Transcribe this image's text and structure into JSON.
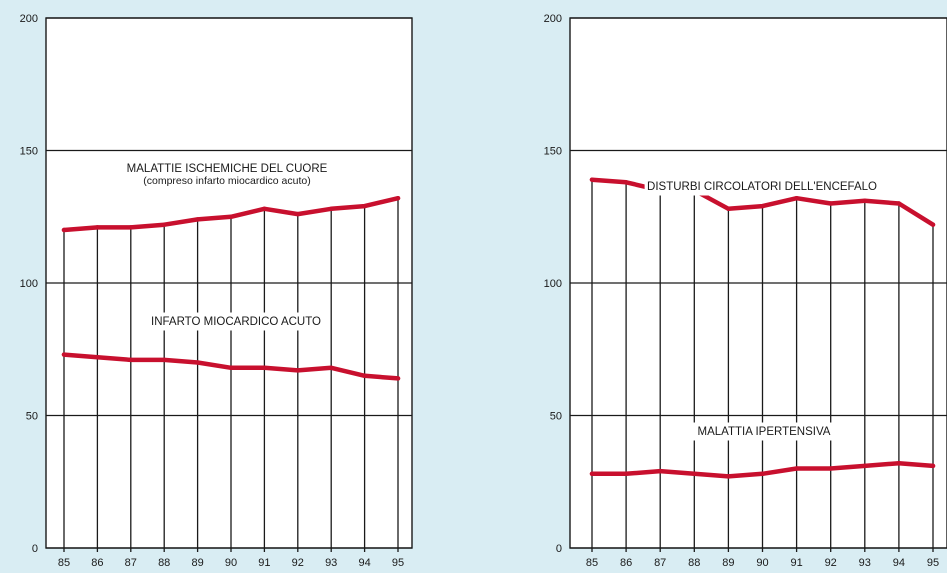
{
  "chart_data": [
    {
      "type": "line",
      "x": [
        85,
        86,
        87,
        88,
        89,
        90,
        91,
        92,
        93,
        94,
        95
      ],
      "ylim": [
        0,
        200
      ],
      "yticks": [
        0,
        50,
        100,
        150,
        200
      ],
      "series": [
        {
          "values": [
            120,
            121,
            121,
            122,
            124,
            125,
            128,
            126,
            128,
            129,
            132
          ]
        },
        {
          "values": [
            73,
            72,
            71,
            71,
            70,
            68,
            68,
            67,
            68,
            65,
            64
          ]
        }
      ],
      "annotations": [
        {
          "lines": [
            "MALATTIE ISCHEMICHE DEL CUORE",
            "(compreso infarto miocardico acuto)"
          ]
        },
        {
          "lines": [
            "INFARTO MIOCARDICO ACUTO"
          ]
        }
      ],
      "grid": true,
      "line_color": "#c8102e"
    },
    {
      "type": "line",
      "x": [
        85,
        86,
        87,
        88,
        89,
        90,
        91,
        92,
        93,
        94,
        95
      ],
      "ylim": [
        0,
        200
      ],
      "yticks": [
        0,
        50,
        100,
        150,
        200
      ],
      "series": [
        {
          "values": [
            139,
            138,
            135,
            135,
            128,
            129,
            132,
            130,
            131,
            130,
            122
          ]
        },
        {
          "values": [
            28,
            28,
            29,
            28,
            27,
            28,
            30,
            30,
            31,
            32,
            31
          ]
        }
      ],
      "annotations": [
        {
          "lines": [
            "DISTURBI CIRCOLATORI DELL'ENCEFALO"
          ]
        },
        {
          "lines": [
            "MALATTIA IPERTENSIVA"
          ]
        }
      ],
      "grid": true,
      "line_color": "#c8102e"
    }
  ]
}
